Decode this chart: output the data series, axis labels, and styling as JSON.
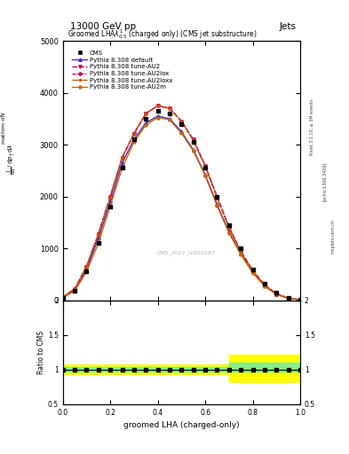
{
  "title_top": "13000 GeV pp",
  "title_right": "Jets",
  "plot_title": "Groomed LHA$\\lambda^{1}_{0.5}$ (charged only) (CMS jet substructure)",
  "xlabel": "groomed LHA (charged-only)",
  "ratio_ylabel": "Ratio to CMS",
  "watermark": "CMS_2021_I1920187",
  "rivet_label": "Rivet 3.1.10, ≥ 3M events",
  "arxiv_label": "[arXiv:1306.3436]",
  "mcplots_label": "mcplots.cern.ch",
  "x": [
    0.0,
    0.05,
    0.1,
    0.15,
    0.2,
    0.25,
    0.3,
    0.35,
    0.4,
    0.45,
    0.5,
    0.55,
    0.6,
    0.65,
    0.7,
    0.75,
    0.8,
    0.85,
    0.9,
    0.95,
    1.0
  ],
  "cms_data": [
    50,
    180,
    550,
    1100,
    1800,
    2550,
    3100,
    3500,
    3650,
    3600,
    3400,
    3050,
    2550,
    2000,
    1450,
    1000,
    600,
    320,
    140,
    50,
    10
  ],
  "pythia_default": [
    50,
    200,
    600,
    1200,
    1900,
    2650,
    3100,
    3420,
    3550,
    3500,
    3250,
    2900,
    2420,
    1850,
    1320,
    900,
    550,
    280,
    120,
    40,
    10
  ],
  "pythia_au2": [
    60,
    220,
    650,
    1280,
    2000,
    2750,
    3200,
    3600,
    3750,
    3700,
    3450,
    3100,
    2600,
    2000,
    1420,
    950,
    580,
    300,
    130,
    40,
    10
  ],
  "pythia_au2lox": [
    60,
    220,
    650,
    1280,
    2000,
    2750,
    3220,
    3600,
    3750,
    3700,
    3450,
    3080,
    2580,
    1980,
    1400,
    930,
    560,
    290,
    120,
    40,
    10
  ],
  "pythia_au2loxx": [
    60,
    220,
    650,
    1280,
    2000,
    2750,
    3220,
    3600,
    3750,
    3700,
    3450,
    3080,
    2580,
    1980,
    1400,
    930,
    560,
    290,
    120,
    40,
    10
  ],
  "pythia_au2m": [
    50,
    180,
    550,
    1100,
    1820,
    2550,
    3050,
    3380,
    3520,
    3480,
    3220,
    2880,
    2400,
    1820,
    1300,
    880,
    530,
    270,
    110,
    40,
    10
  ],
  "ratio_green_lo": [
    0.97,
    0.97,
    0.97,
    0.97,
    0.97,
    0.97,
    0.97,
    0.97,
    0.97,
    0.97,
    0.97,
    0.97,
    0.97,
    0.97,
    0.97,
    0.97,
    0.97,
    0.97,
    0.97,
    0.97,
    0.97
  ],
  "ratio_green_hi": [
    1.03,
    1.03,
    1.03,
    1.03,
    1.03,
    1.03,
    1.03,
    1.03,
    1.03,
    1.03,
    1.03,
    1.03,
    1.03,
    1.03,
    1.1,
    1.1,
    1.1,
    1.1,
    1.1,
    1.1,
    1.1
  ],
  "ratio_yellow_lo": [
    0.93,
    0.93,
    0.93,
    0.93,
    0.93,
    0.93,
    0.93,
    0.93,
    0.93,
    0.93,
    0.93,
    0.93,
    0.93,
    0.93,
    0.82,
    0.82,
    0.82,
    0.82,
    0.82,
    0.82,
    0.82
  ],
  "ratio_yellow_hi": [
    1.07,
    1.07,
    1.07,
    1.07,
    1.07,
    1.07,
    1.07,
    1.07,
    1.07,
    1.07,
    1.07,
    1.07,
    1.07,
    1.07,
    1.22,
    1.22,
    1.22,
    1.22,
    1.22,
    1.22,
    1.22
  ],
  "color_default": "#3333cc",
  "color_au2": "#cc0055",
  "color_au2lox": "#cc0055",
  "color_au2loxx": "#cc5500",
  "color_au2m": "#cc6600",
  "color_cms": "#000000",
  "ylim_main": [
    0,
    5000
  ],
  "ylim_ratio": [
    0.5,
    2.0
  ],
  "xlim": [
    0.0,
    1.0
  ]
}
